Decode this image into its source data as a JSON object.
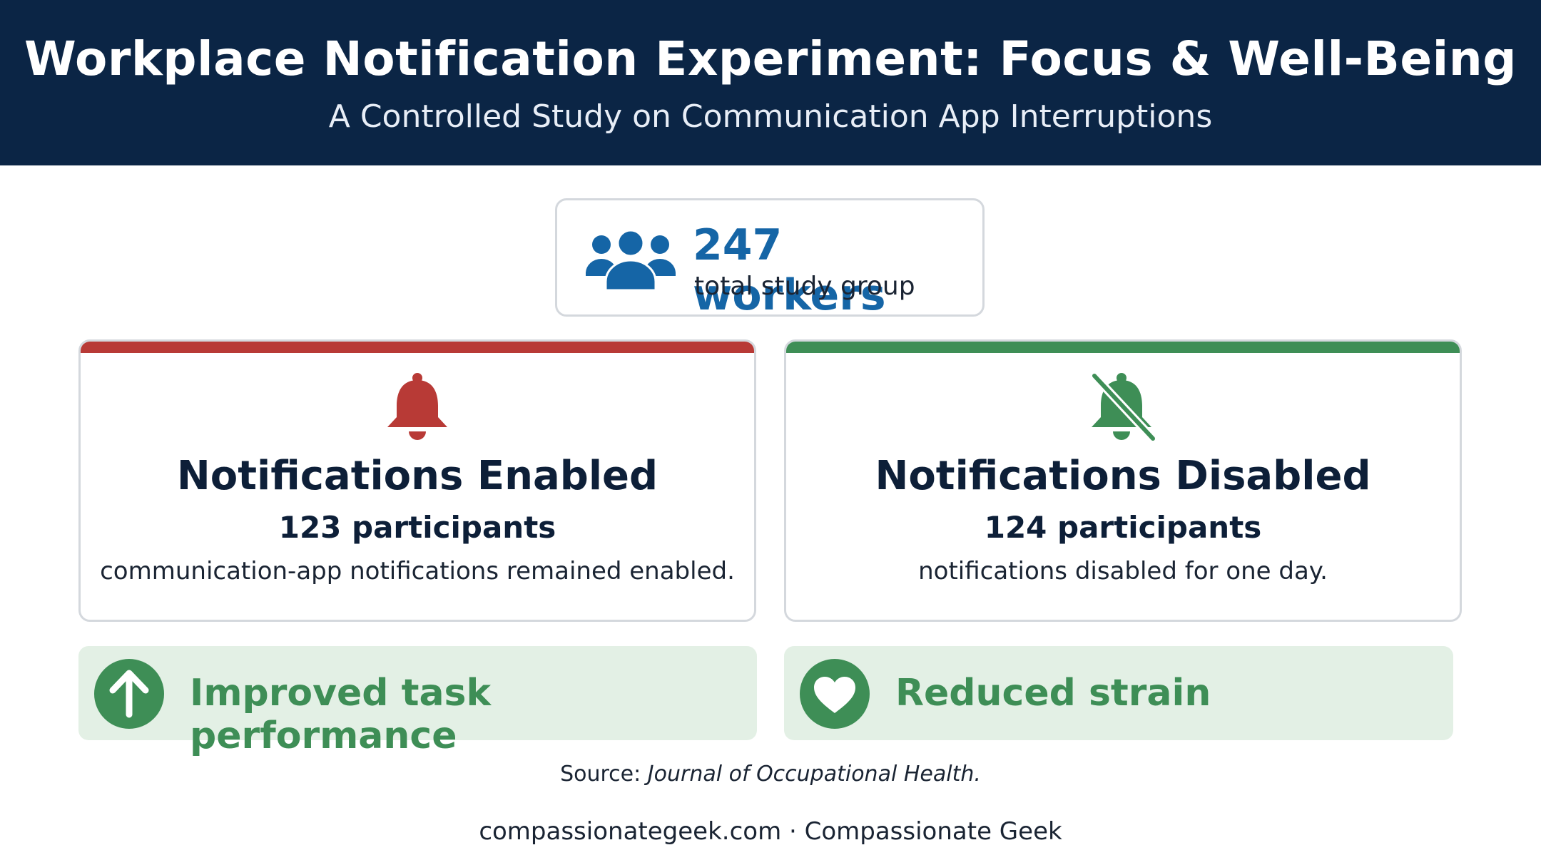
{
  "header": {
    "title": "Workplace Notification Experiment: Focus & Well-Being",
    "subtitle": "A Controlled Study on Communication App Interruptions",
    "background_color": "#0b2545"
  },
  "study_group": {
    "count": "247 workers",
    "caption": "total study group",
    "icon": "people-icon",
    "accent_color": "#1565a6"
  },
  "groups": [
    {
      "title": "Notifications Enabled",
      "participants": "123 participants",
      "description": "communication-app notifications remained enabled.",
      "icon": "bell-icon",
      "color": "#b83a36"
    },
    {
      "title": "Notifications Disabled",
      "participants": "124 participants",
      "description": "notifications disabled for one day.",
      "icon": "bell-slash-icon",
      "color": "#3e8e56"
    }
  ],
  "outcomes": [
    {
      "label": "Improved task performance",
      "icon": "arrow-up-icon",
      "color": "#3e8e56"
    },
    {
      "label": "Reduced strain",
      "icon": "heart-icon",
      "color": "#3e8e56"
    }
  ],
  "source": {
    "prefix": "Source:",
    "journal": "Journal of Occupational Health."
  },
  "footer": {
    "text": "compassionategeek.com · Compassionate Geek"
  }
}
